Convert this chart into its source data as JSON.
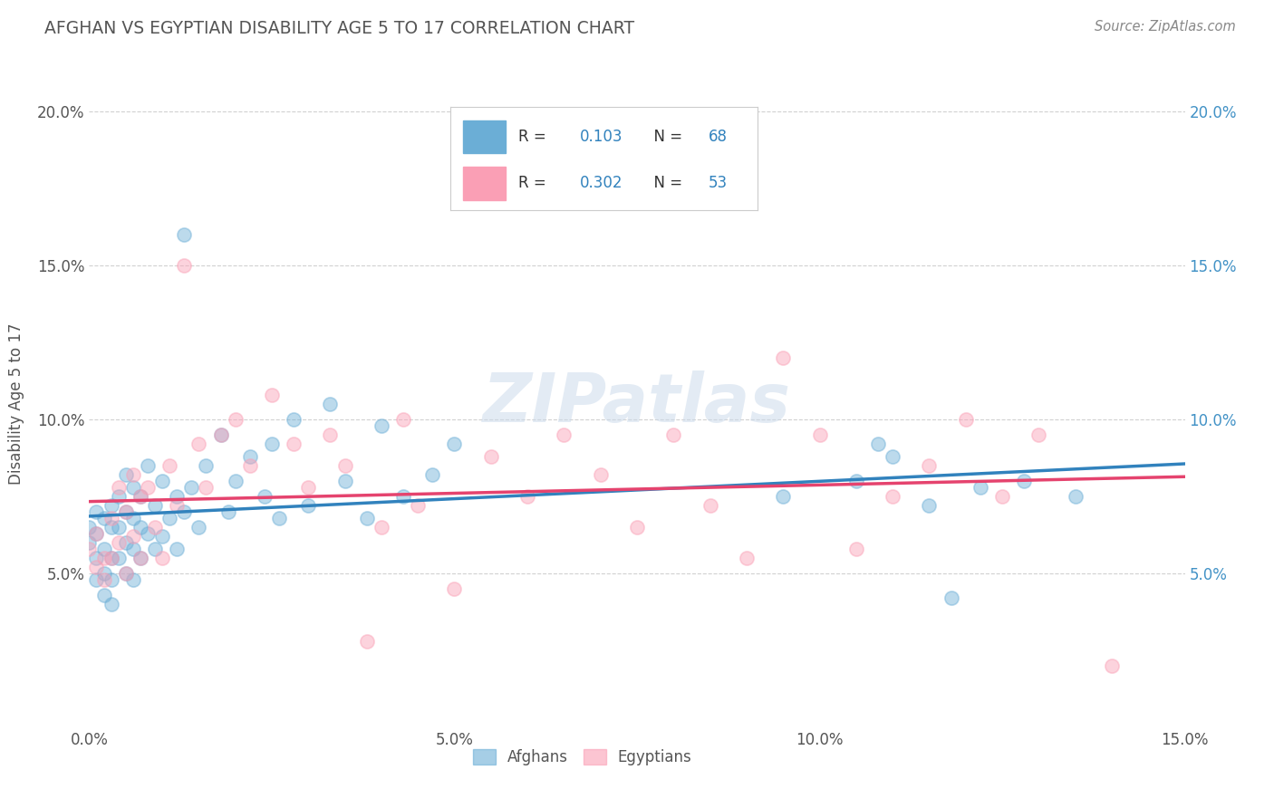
{
  "title": "AFGHAN VS EGYPTIAN DISABILITY AGE 5 TO 17 CORRELATION CHART",
  "source": "Source: ZipAtlas.com",
  "ylabel": "Disability Age 5 to 17",
  "xlim": [
    0.0,
    0.15
  ],
  "ylim": [
    0.0,
    0.21
  ],
  "xtick_labels": [
    "0.0%",
    "5.0%",
    "10.0%",
    "15.0%"
  ],
  "xtick_vals": [
    0.0,
    0.05,
    0.1,
    0.15
  ],
  "ytick_labels": [
    "5.0%",
    "10.0%",
    "15.0%",
    "20.0%"
  ],
  "ytick_vals": [
    0.05,
    0.1,
    0.15,
    0.2
  ],
  "legend_label_1": "Afghans",
  "legend_label_2": "Egyptians",
  "R1": 0.103,
  "N1": 68,
  "R2": 0.302,
  "N2": 53,
  "blue_color": "#6baed6",
  "pink_color": "#fa9fb5",
  "blue_line_color": "#3182bd",
  "pink_line_color": "#e5436e",
  "watermark": "ZIPatlas",
  "title_color": "#555555",
  "background_color": "#ffffff",
  "grid_color": "#cccccc",
  "afghans_x": [
    0.0,
    0.0,
    0.001,
    0.001,
    0.001,
    0.001,
    0.002,
    0.002,
    0.002,
    0.002,
    0.003,
    0.003,
    0.003,
    0.003,
    0.003,
    0.004,
    0.004,
    0.004,
    0.005,
    0.005,
    0.005,
    0.005,
    0.006,
    0.006,
    0.006,
    0.006,
    0.007,
    0.007,
    0.007,
    0.008,
    0.008,
    0.009,
    0.009,
    0.01,
    0.01,
    0.011,
    0.012,
    0.012,
    0.013,
    0.014,
    0.015,
    0.016,
    0.018,
    0.019,
    0.02,
    0.022,
    0.024,
    0.025,
    0.026,
    0.028,
    0.03,
    0.033,
    0.035,
    0.038,
    0.04,
    0.043,
    0.047,
    0.05,
    0.013,
    0.095,
    0.105,
    0.108,
    0.11,
    0.115,
    0.118,
    0.122,
    0.128,
    0.135
  ],
  "afghans_y": [
    0.065,
    0.06,
    0.07,
    0.063,
    0.055,
    0.048,
    0.068,
    0.058,
    0.05,
    0.043,
    0.072,
    0.065,
    0.055,
    0.048,
    0.04,
    0.075,
    0.065,
    0.055,
    0.082,
    0.07,
    0.06,
    0.05,
    0.078,
    0.068,
    0.058,
    0.048,
    0.075,
    0.065,
    0.055,
    0.085,
    0.063,
    0.072,
    0.058,
    0.08,
    0.062,
    0.068,
    0.075,
    0.058,
    0.07,
    0.078,
    0.065,
    0.085,
    0.095,
    0.07,
    0.08,
    0.088,
    0.075,
    0.092,
    0.068,
    0.1,
    0.072,
    0.105,
    0.08,
    0.068,
    0.098,
    0.075,
    0.082,
    0.092,
    0.16,
    0.075,
    0.08,
    0.092,
    0.088,
    0.072,
    0.042,
    0.078,
    0.08,
    0.075
  ],
  "egyptians_x": [
    0.0,
    0.001,
    0.001,
    0.002,
    0.002,
    0.003,
    0.003,
    0.004,
    0.004,
    0.005,
    0.005,
    0.006,
    0.006,
    0.007,
    0.007,
    0.008,
    0.009,
    0.01,
    0.011,
    0.012,
    0.013,
    0.015,
    0.016,
    0.018,
    0.02,
    0.022,
    0.025,
    0.028,
    0.03,
    0.033,
    0.035,
    0.038,
    0.04,
    0.043,
    0.045,
    0.05,
    0.055,
    0.06,
    0.065,
    0.07,
    0.075,
    0.08,
    0.085,
    0.09,
    0.095,
    0.1,
    0.105,
    0.11,
    0.115,
    0.12,
    0.125,
    0.13,
    0.14
  ],
  "egyptians_y": [
    0.058,
    0.063,
    0.052,
    0.055,
    0.048,
    0.068,
    0.055,
    0.078,
    0.06,
    0.07,
    0.05,
    0.082,
    0.062,
    0.075,
    0.055,
    0.078,
    0.065,
    0.055,
    0.085,
    0.072,
    0.15,
    0.092,
    0.078,
    0.095,
    0.1,
    0.085,
    0.108,
    0.092,
    0.078,
    0.095,
    0.085,
    0.028,
    0.065,
    0.1,
    0.072,
    0.045,
    0.088,
    0.075,
    0.095,
    0.082,
    0.065,
    0.095,
    0.072,
    0.055,
    0.12,
    0.095,
    0.058,
    0.075,
    0.085,
    0.1,
    0.075,
    0.095,
    0.02
  ]
}
